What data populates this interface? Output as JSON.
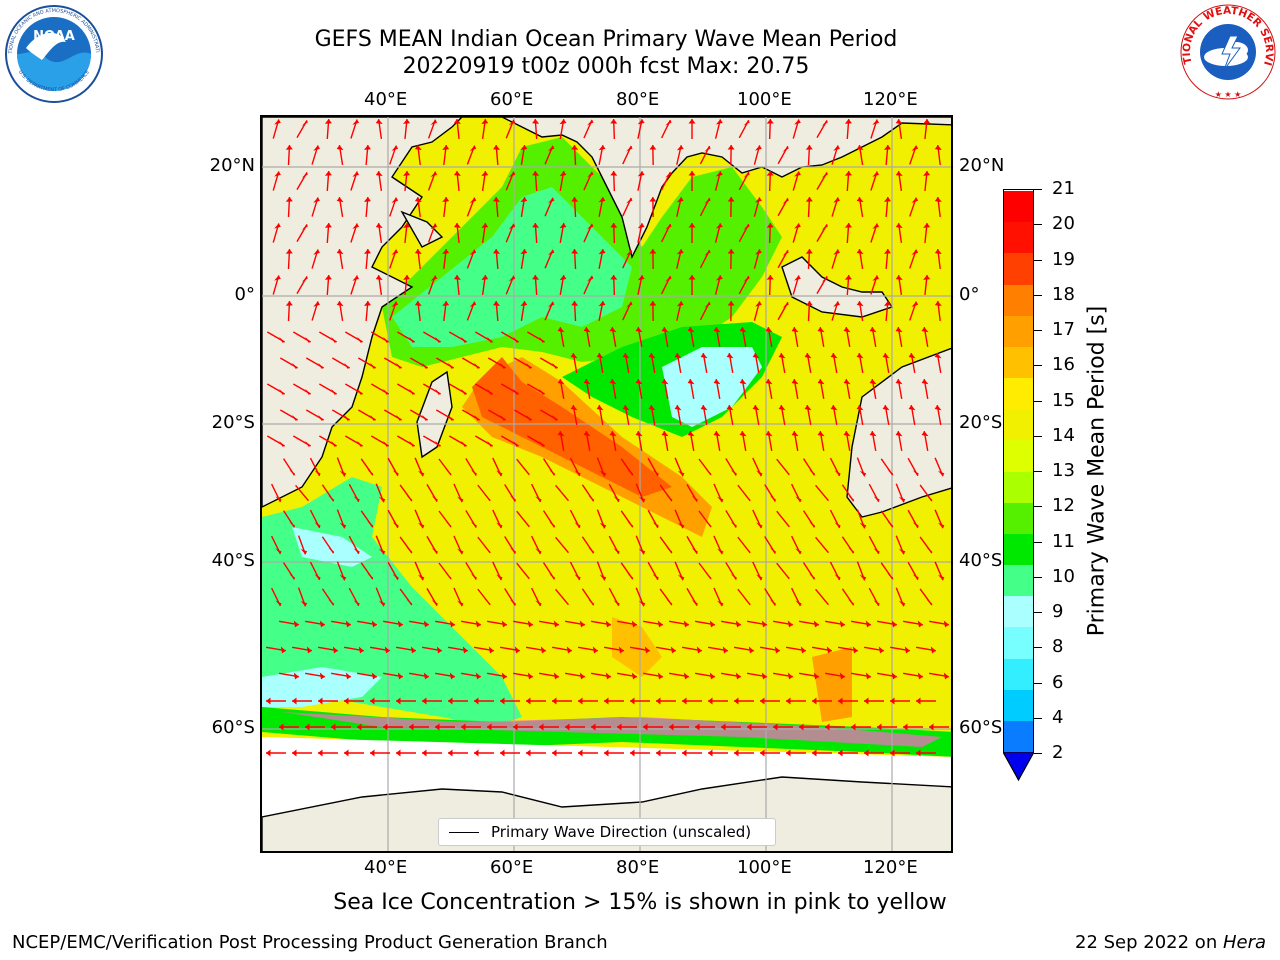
{
  "header": {
    "title_line1": "GEFS MEAN Indian Ocean Primary Wave Mean Period",
    "title_line2": "20220919 t00z 000h fcst   Max: 20.75"
  },
  "logos": {
    "noaa_text": "NOAA",
    "noaa_ring_text": "NATIONAL OCEANIC AND ATMOSPHERIC ADMINISTRATION",
    "noaa_ring_text_bottom": "U.S. DEPARTMENT OF COMMERCE",
    "nws_ring_text": "NATIONAL WEATHER SERVICE"
  },
  "map": {
    "lon_labels": [
      "40°E",
      "60°E",
      "80°E",
      "100°E",
      "120°E"
    ],
    "lat_labels_left": [
      "20°N",
      "0°",
      "20°S",
      "40°S",
      "60°S"
    ],
    "lat_labels_right": [
      "20°N",
      "0°",
      "20°S",
      "40°S",
      "60°S"
    ],
    "legend_label": "Primary Wave Direction (unscaled)",
    "land_color": "#efeddf",
    "arrow_color": "#ff0000"
  },
  "colorbar": {
    "title": "Primary Wave Mean Period [s]",
    "tick_labels": [
      "2",
      "4",
      "6",
      "8",
      "9",
      "10",
      "11",
      "12",
      "13",
      "14",
      "15",
      "16",
      "17",
      "18",
      "19",
      "20",
      "21"
    ],
    "colors": [
      "#0a7cff",
      "#00ccff",
      "#33eeff",
      "#77ffff",
      "#aaffff",
      "#44ff88",
      "#00e800",
      "#55f000",
      "#aaff00",
      "#ddff00",
      "#f0f000",
      "#ffec00",
      "#ffc000",
      "#ffa000",
      "#ff8000",
      "#ff4000",
      "#ff1000",
      "#ff0000"
    ],
    "extend_color": "#0000ee"
  },
  "subtitle": "Sea Ice Concentration > 15% is shown in pink to yellow",
  "footer": {
    "left": "NCEP/EMC/Verification Post Processing Product Generation Branch",
    "right_prefix": "22 Sep 2022 on ",
    "right_machine": "Hera"
  }
}
